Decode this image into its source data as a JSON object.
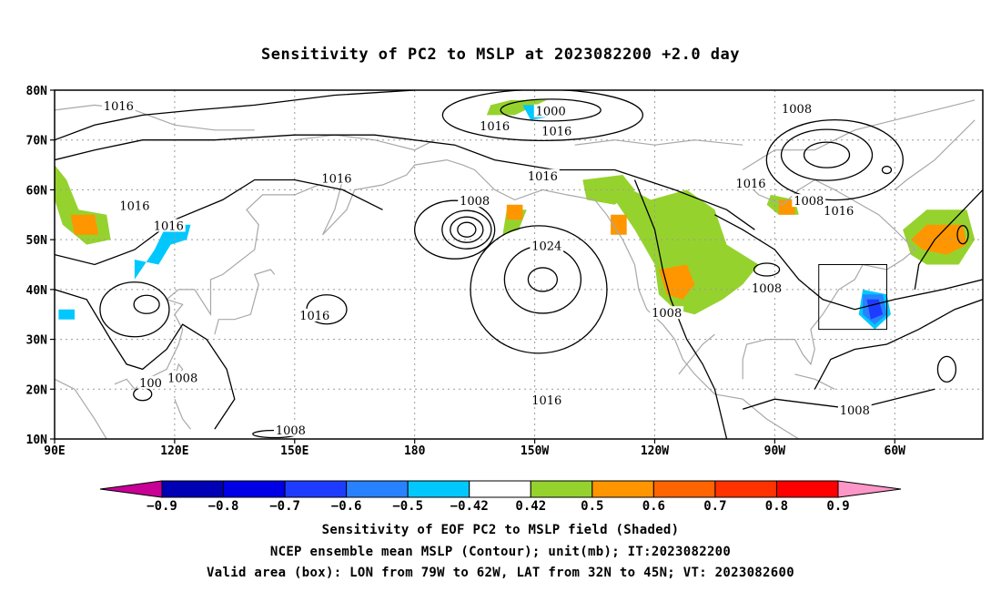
{
  "title": "Sensitivity of PC2 to MSLP at 2023082200 +2.0 day",
  "map": {
    "lat_labels": [
      "80N",
      "70N",
      "60N",
      "50N",
      "40N",
      "30N",
      "20N",
      "10N"
    ],
    "lat_values": [
      80,
      70,
      60,
      50,
      40,
      30,
      20,
      10
    ],
    "lon_labels": [
      "90E",
      "120E",
      "150E",
      "180",
      "150W",
      "120W",
      "90W",
      "60W"
    ],
    "lon_values": [
      90,
      120,
      150,
      180,
      210,
      240,
      270,
      300
    ],
    "lon_range": [
      90,
      322
    ],
    "lat_range": [
      10,
      80
    ],
    "valid_box": {
      "lon_min": 281,
      "lon_max": 298,
      "lat_min": 32,
      "lat_max": 45
    },
    "contour_labels": [
      {
        "text": "1016",
        "lon": 106,
        "lat": 76.5
      },
      {
        "text": "1000",
        "lon": 214,
        "lat": 75.5
      },
      {
        "text": "1008",
        "lon": 275.5,
        "lat": 76
      },
      {
        "text": "1016",
        "lon": 200,
        "lat": 72.5
      },
      {
        "text": "1016",
        "lon": 215.5,
        "lat": 71.5
      },
      {
        "text": "1016",
        "lon": 160.5,
        "lat": 62
      },
      {
        "text": "1016",
        "lon": 212,
        "lat": 62.5
      },
      {
        "text": "1016",
        "lon": 264,
        "lat": 61
      },
      {
        "text": "1016",
        "lon": 110,
        "lat": 56.5
      },
      {
        "text": "1008",
        "lon": 195,
        "lat": 57.5
      },
      {
        "text": "1008",
        "lon": 278.5,
        "lat": 57.5
      },
      {
        "text": "1016",
        "lon": 286,
        "lat": 55.5
      },
      {
        "text": "1016",
        "lon": 118.5,
        "lat": 52.5
      },
      {
        "text": "1024",
        "lon": 213,
        "lat": 48.5
      },
      {
        "text": "1008",
        "lon": 268,
        "lat": 40
      },
      {
        "text": "1016",
        "lon": 155,
        "lat": 34.5
      },
      {
        "text": "1008",
        "lon": 243,
        "lat": 35
      },
      {
        "text": "1016",
        "lon": 213,
        "lat": 17.5
      },
      {
        "text": "1008",
        "lon": 122,
        "lat": 22
      },
      {
        "text": "100",
        "lon": 114,
        "lat": 21
      },
      {
        "text": "1008",
        "lon": 290,
        "lat": 15.5
      },
      {
        "text": "1008",
        "lon": 149,
        "lat": 11.5
      }
    ]
  },
  "colorbar": {
    "labels": [
      "−0.9",
      "−0.8",
      "−0.7",
      "−0.6",
      "−0.5",
      "−0.42",
      "0.42",
      "0.5",
      "0.6",
      "0.7",
      "0.8",
      "0.9"
    ],
    "colors": [
      "#c80096",
      "#0000b4",
      "#0000e6",
      "#1e3cff",
      "#2882ff",
      "#00c8ff",
      "#ffffff",
      "#96d22d",
      "#ff9600",
      "#ff6400",
      "#ff3200",
      "#ff0000",
      "#ff96c8"
    ]
  },
  "captions": {
    "line1": "Sensitivity of EOF PC2 to MSLP field (Shaded)",
    "line2": "NCEP ensemble mean MSLP (Contour); unit(mb); IT:2023082200",
    "line3": "Valid area (box): LON from 79W to 62W, LAT from 32N to 45N; VT: 2023082600"
  }
}
